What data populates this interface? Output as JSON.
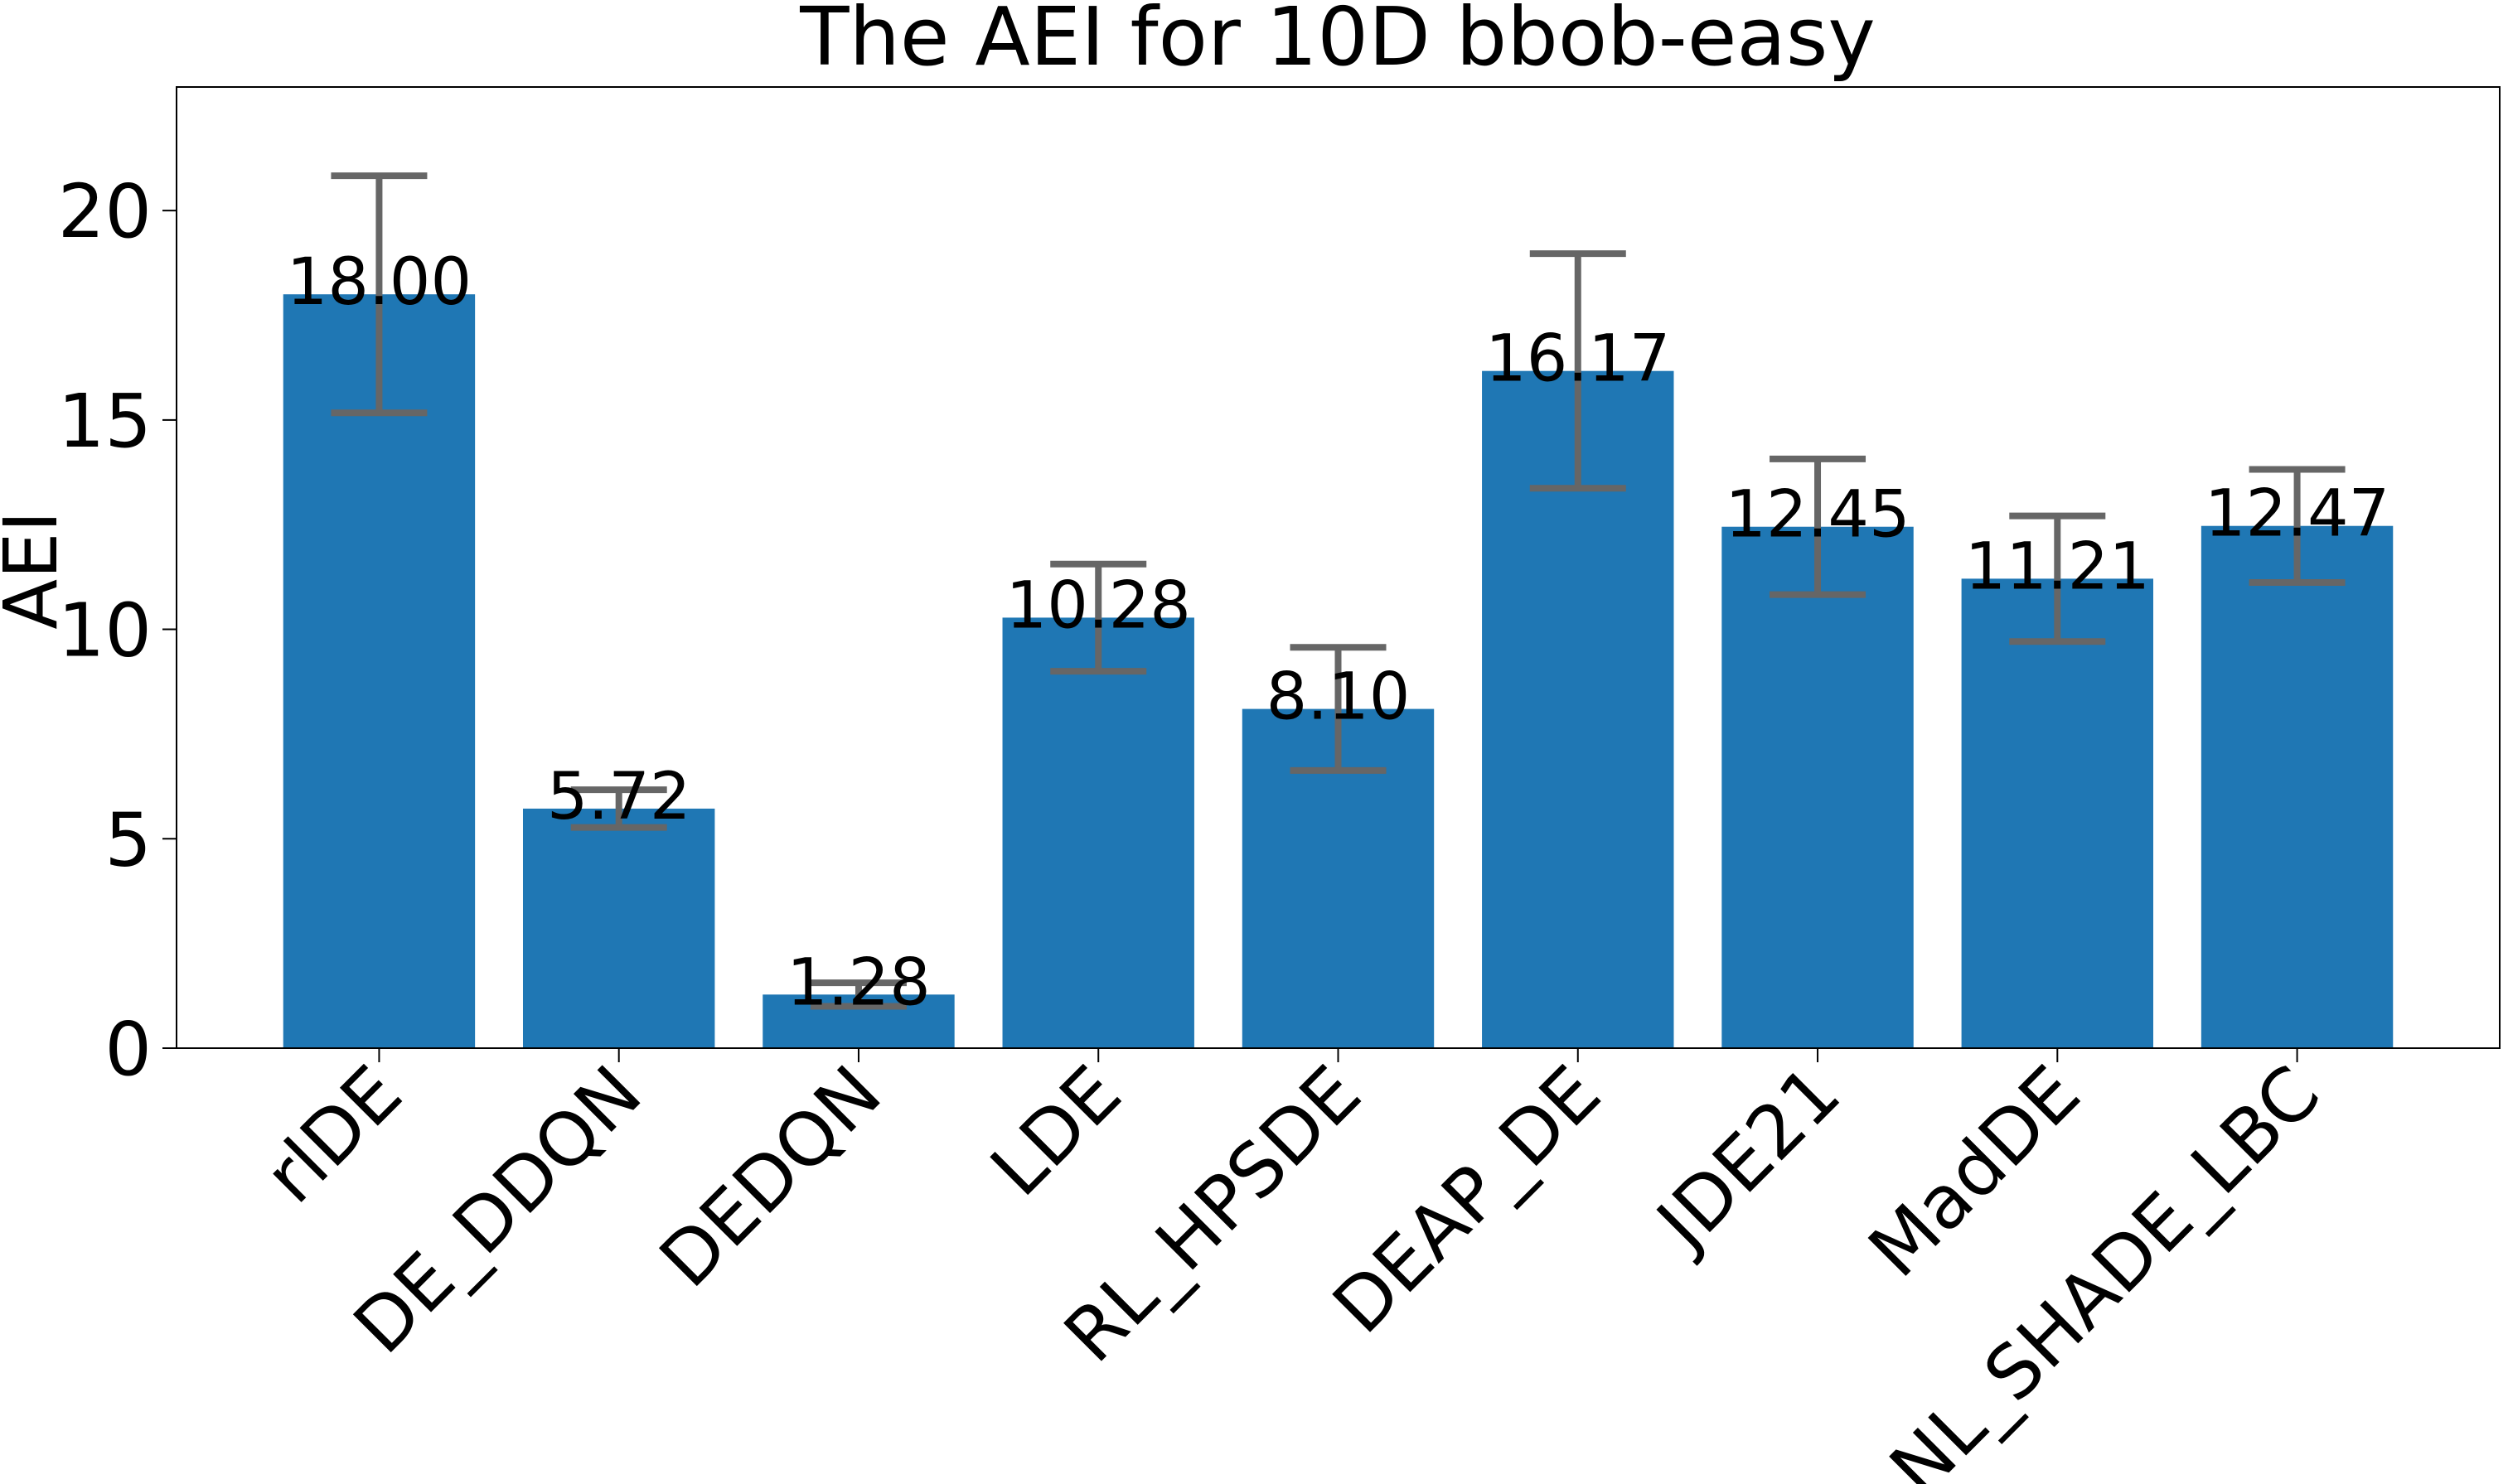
{
  "chart_data": {
    "type": "bar",
    "title": "The AEI for 10D bbob-easy",
    "y_label": "AEI",
    "categories": [
      "rlDE",
      "DE_DDQN",
      "DEDQN",
      "LDE",
      "RL_HPSDE",
      "DEAP_DE",
      "JDE21",
      "MadDE",
      "NL_SHADE_LBC"
    ],
    "values": [
      18.0,
      5.72,
      1.28,
      10.28,
      8.1,
      16.17,
      12.45,
      11.21,
      12.47
    ],
    "value_labels": [
      "18.00",
      "5.72",
      "1.28",
      "10.28",
      "8.10",
      "16.17",
      "12.45",
      "11.21",
      "12.47"
    ],
    "errors": [
      2.83,
      0.45,
      0.28,
      1.28,
      1.47,
      2.8,
      1.62,
      1.5,
      1.35
    ],
    "color": "#1f77b4",
    "error_color": "#666666",
    "ylim": [
      0,
      22.95
    ],
    "yticks": [
      0,
      5,
      10,
      15,
      20
    ],
    "grid": false
  }
}
